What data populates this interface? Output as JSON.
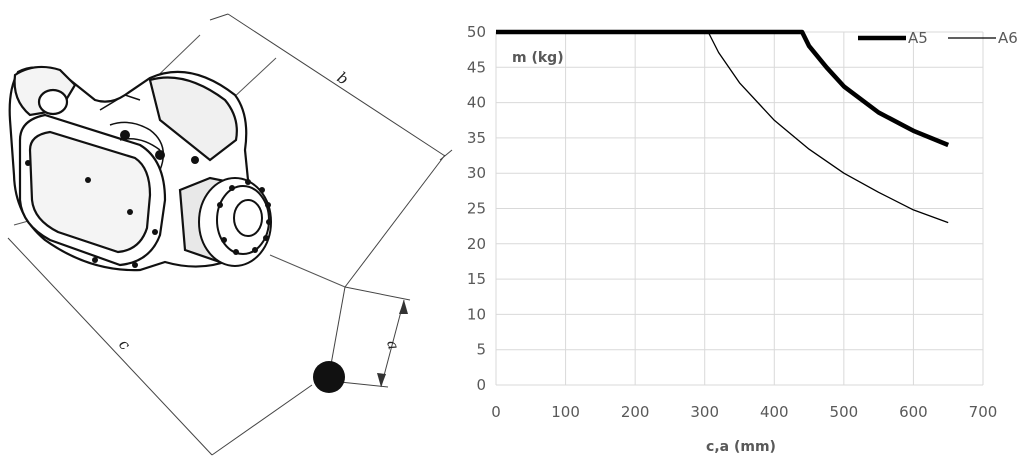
{
  "illustration": {
    "dimension_labels": {
      "b": "b",
      "c": "c",
      "a": "a"
    }
  },
  "chart_data": {
    "type": "line",
    "title": "",
    "xlabel": "c,a (mm)",
    "ylabel": "m (kg)",
    "xlim": [
      0,
      700
    ],
    "ylim": [
      0,
      50
    ],
    "x_ticks": [
      0,
      100,
      200,
      300,
      400,
      500,
      600,
      700
    ],
    "y_ticks": [
      0,
      5,
      10,
      15,
      20,
      25,
      30,
      35,
      40,
      45,
      50
    ],
    "grid": true,
    "legend": {
      "placement": "top-right"
    },
    "series": [
      {
        "name": "A5",
        "color": "#000000",
        "stroke": "thick",
        "points": [
          [
            0,
            50
          ],
          [
            440,
            50
          ],
          [
            450,
            48
          ],
          [
            475,
            45
          ],
          [
            500,
            42.3
          ],
          [
            550,
            38.6
          ],
          [
            600,
            36.0
          ],
          [
            650,
            34.0
          ]
        ]
      },
      {
        "name": "A6",
        "color": "#000000",
        "stroke": "thin",
        "points": [
          [
            0,
            50
          ],
          [
            305,
            50
          ],
          [
            320,
            47.1
          ],
          [
            350,
            42.8
          ],
          [
            400,
            37.5
          ],
          [
            450,
            33.4
          ],
          [
            500,
            30.0
          ],
          [
            550,
            27.3
          ],
          [
            600,
            24.8
          ],
          [
            650,
            23.0
          ]
        ]
      }
    ]
  }
}
